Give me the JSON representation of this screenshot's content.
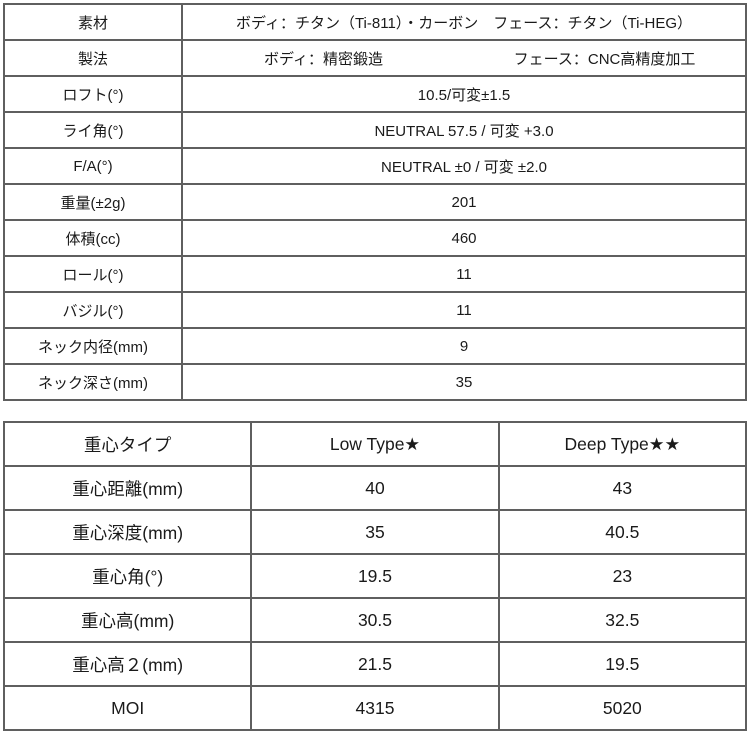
{
  "colors": {
    "background": "#ffffff",
    "border": "#5f5f5f",
    "text": "#1a1a1a"
  },
  "spec_table": {
    "rows": [
      {
        "label": "素材",
        "value": "ボディ：チタン（Ti-811）・カーボン　フェース：チタン（Ti-HEG）"
      },
      {
        "label": "製法",
        "value_body": "ボディ：精密鍛造",
        "value_face": "フェース：CNC高精度加工"
      },
      {
        "label": "ロフト(°)",
        "value": "10.5/可変±1.5"
      },
      {
        "label": "ライ角(°)",
        "value": "NEUTRAL 57.5 / 可変 +3.0"
      },
      {
        "label": "F/A(°)",
        "value": "NEUTRAL ±0 / 可変 ±2.0"
      },
      {
        "label": "重量(±2g)",
        "value": "201"
      },
      {
        "label": "体積(cc)",
        "value": "460"
      },
      {
        "label": "ロール(°)",
        "value": "11"
      },
      {
        "label": "バジル(°)",
        "value": "11"
      },
      {
        "label": "ネック内径(mm)",
        "value": "9"
      },
      {
        "label": "ネック深さ(mm)",
        "value": "35"
      }
    ]
  },
  "cg_table": {
    "headers": [
      "重心タイプ",
      "Low Type★",
      "Deep Type★★"
    ],
    "rows": [
      {
        "label": "重心距離(mm)",
        "low": "40",
        "deep": "43"
      },
      {
        "label": "重心深度(mm)",
        "low": "35",
        "deep": "40.5"
      },
      {
        "label": "重心角(°)",
        "low": "19.5",
        "deep": "23"
      },
      {
        "label": "重心高(mm)",
        "low": "30.5",
        "deep": "32.5"
      },
      {
        "label": "重心高２(mm)",
        "low": "21.5",
        "deep": "19.5"
      },
      {
        "label": "MOI",
        "low": "4315",
        "deep": "5020"
      }
    ]
  }
}
